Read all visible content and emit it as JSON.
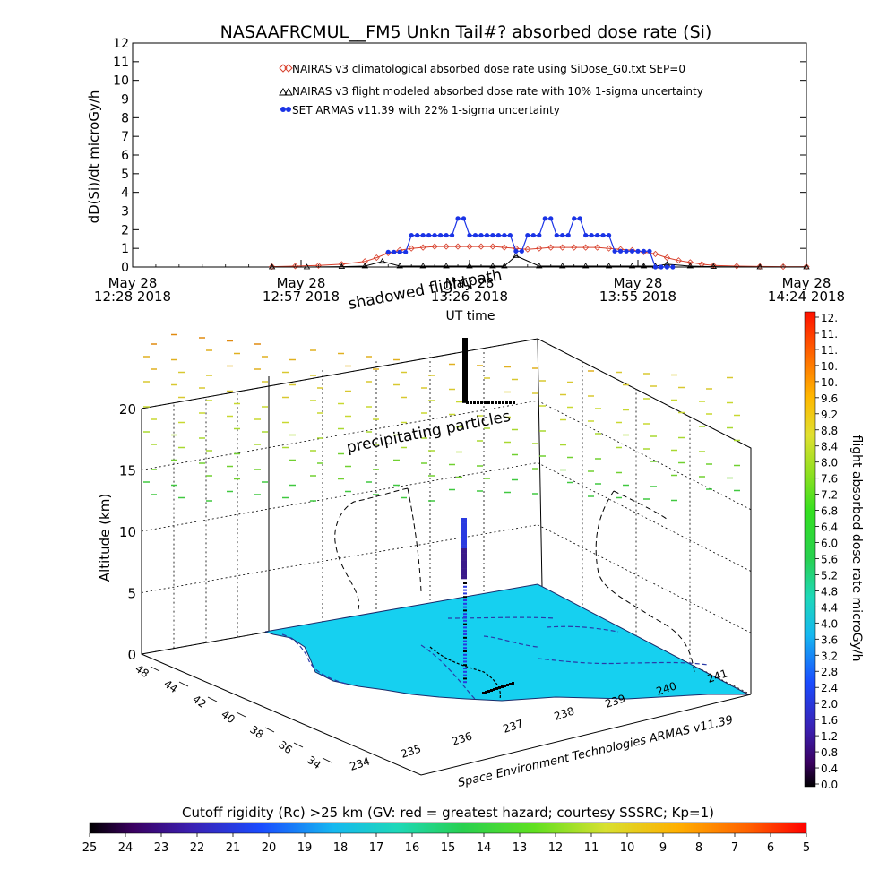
{
  "chart_data": [
    {
      "type": "line",
      "title": "NASAAFRCMUL__FM5 Unkn Tail#? absorbed dose rate (Si)",
      "ylabel": "dD(Si)/dt microGy/h",
      "xlabel": "UT time",
      "ylim": [
        0,
        12
      ],
      "yticks": [
        "0",
        "1",
        "2",
        "3",
        "4",
        "5",
        "6",
        "7",
        "8",
        "9",
        "10",
        "11",
        "12"
      ],
      "x_tick_labels": [
        {
          "date": "May 28",
          "time": "12:28 2018"
        },
        {
          "date": "May 28",
          "time": "12:57 2018"
        },
        {
          "date": "May 28",
          "time": "13:26 2018"
        },
        {
          "date": "May 28",
          "time": "13:55 2018"
        },
        {
          "date": "May 28",
          "time": "14:24 2018"
        }
      ],
      "x_minutes_range": [
        0,
        116
      ],
      "legend": [
        "NAIRAS v3 climatological absorbed dose rate using SiDose_G0.txt SEP=0",
        "NAIRAS v3 flight modeled absorbed dose rate with 10% 1-sigma uncertainty",
        "SET ARMAS v11.39 with 22% 1-sigma uncertainty"
      ],
      "series": [
        {
          "name": "NAIRAS v3 climatological absorbed dose rate using SiDose_G0.txt SEP=0",
          "color": "#d8402c",
          "x": [
            24,
            28,
            32,
            36,
            40,
            42,
            44,
            46,
            48,
            50,
            52,
            54,
            56,
            58,
            60,
            62,
            64,
            66,
            68,
            70,
            72,
            74,
            76,
            78,
            80,
            82,
            84,
            86,
            88,
            90,
            92,
            94,
            96,
            98,
            100,
            104,
            108,
            112,
            116
          ],
          "y": [
            0.02,
            0.05,
            0.08,
            0.15,
            0.3,
            0.5,
            0.75,
            0.9,
            1.0,
            1.05,
            1.1,
            1.1,
            1.1,
            1.1,
            1.1,
            1.1,
            1.05,
            1.0,
            0.95,
            1.0,
            1.05,
            1.05,
            1.05,
            1.05,
            1.05,
            1.0,
            0.95,
            0.9,
            0.8,
            0.7,
            0.5,
            0.35,
            0.25,
            0.15,
            0.08,
            0.05,
            0.03,
            0.02,
            0.02
          ]
        },
        {
          "name": "NAIRAS v3 flight modeled absorbed dose rate with 10% 1-sigma uncertainty",
          "color": "#000000",
          "x": [
            24,
            30,
            36,
            40,
            43,
            46,
            50,
            54,
            58,
            62,
            64,
            66,
            70,
            74,
            78,
            82,
            86,
            88,
            90,
            92,
            96,
            100,
            108,
            116
          ],
          "y": [
            0.0,
            0.0,
            0.02,
            0.05,
            0.3,
            0.05,
            0.05,
            0.05,
            0.05,
            0.05,
            0.05,
            0.6,
            0.05,
            0.05,
            0.05,
            0.05,
            0.05,
            0.05,
            0.05,
            0.15,
            0.05,
            0.02,
            0.0,
            0.0
          ]
        },
        {
          "name": "SET ARMAS v11.39 with 22% 1-sigma uncertainty",
          "color": "#1a33e6",
          "x": [
            44,
            45,
            46,
            47,
            48,
            49,
            50,
            51,
            52,
            53,
            54,
            55,
            56,
            57,
            58,
            59,
            60,
            61,
            62,
            63,
            64,
            65,
            66,
            67,
            68,
            69,
            70,
            71,
            72,
            73,
            74,
            75,
            76,
            77,
            78,
            79,
            80,
            81,
            82,
            83,
            84,
            85,
            86,
            87,
            88,
            89,
            90,
            91,
            92,
            93
          ],
          "y": [
            0.8,
            0.8,
            0.8,
            0.8,
            1.7,
            1.7,
            1.7,
            1.7,
            1.7,
            1.7,
            1.7,
            1.7,
            2.6,
            2.6,
            1.7,
            1.7,
            1.7,
            1.7,
            1.7,
            1.7,
            1.7,
            1.7,
            0.85,
            0.85,
            1.7,
            1.7,
            1.7,
            2.6,
            2.6,
            1.7,
            1.7,
            1.7,
            2.6,
            2.6,
            1.7,
            1.7,
            1.7,
            1.7,
            1.7,
            0.85,
            0.85,
            0.85,
            0.85,
            0.85,
            0.85,
            0.85,
            0.0,
            0.0,
            0.0,
            0.0
          ]
        }
      ]
    },
    {
      "type": "scatter",
      "zlabel": "Altitude (km)",
      "zlim": [
        0,
        20
      ],
      "zticks": [
        "0",
        "5",
        "10",
        "15",
        "20"
      ],
      "lat_ticks": [
        "48",
        "44",
        "42",
        "40",
        "38",
        "36",
        "34"
      ],
      "lon_ticks": [
        "234",
        "235",
        "236",
        "237",
        "238",
        "239",
        "240",
        "241"
      ],
      "annotations": [
        "shadowed flightpath",
        "precipitating particles",
        "Space Environment Technologies ARMAS v11.39"
      ],
      "flight_path": [
        {
          "lon": 237.0,
          "lat": 38.2,
          "alt_km": 2,
          "dose": 1.0
        },
        {
          "lon": 237.0,
          "lat": 38.2,
          "alt_km": 5,
          "dose": 1.5
        },
        {
          "lon": 237.0,
          "lat": 38.2,
          "alt_km": 8,
          "dose": 2.4
        },
        {
          "lon": 237.0,
          "lat": 38.2,
          "alt_km": 11,
          "dose": 3.0
        },
        {
          "lon": 237.0,
          "lat": 38.2,
          "alt_km": 13.5,
          "dose": 0.2
        },
        {
          "lon": 237.0,
          "lat": 38.2,
          "alt_km": 14.5,
          "dose": 0.0
        },
        {
          "lon": 237.0,
          "lat": 38.2,
          "alt_km": 17,
          "dose": 0.0
        },
        {
          "lon": 237.0,
          "lat": 38.2,
          "alt_km": 20,
          "dose": 0.0
        }
      ]
    }
  ],
  "colorbar_right": {
    "label": "flight absorbed dose rate microGy/h",
    "ticks": [
      "12.",
      "11.",
      "11.",
      "10.",
      "10.",
      "9.6",
      "9.2",
      "8.8",
      "8.4",
      "8.0",
      "7.6",
      "7.2",
      "6.8",
      "6.4",
      "6.0",
      "5.6",
      "5.2",
      "4.8",
      "4.4",
      "4.0",
      "3.6",
      "3.2",
      "2.8",
      "2.4",
      "2.0",
      "1.6",
      "1.2",
      "0.8",
      "0.4",
      "0.0"
    ]
  },
  "colorbar_bottom": {
    "label": "Cutoff rigidity (Rc) >25 km (GV: red = greatest hazard; courtesy SSSRC; Kp=1)",
    "ticks": [
      "25",
      "24",
      "23",
      "22",
      "21",
      "20",
      "19",
      "18",
      "17",
      "16",
      "15",
      "14",
      "13",
      "12",
      "11",
      "10",
      "9",
      "8",
      "7",
      "6",
      "5"
    ]
  },
  "colors": {
    "ocean": "#16d0f0",
    "cyan": "#22d4ee",
    "red": "#d8402c",
    "blue": "#1a33e6"
  }
}
